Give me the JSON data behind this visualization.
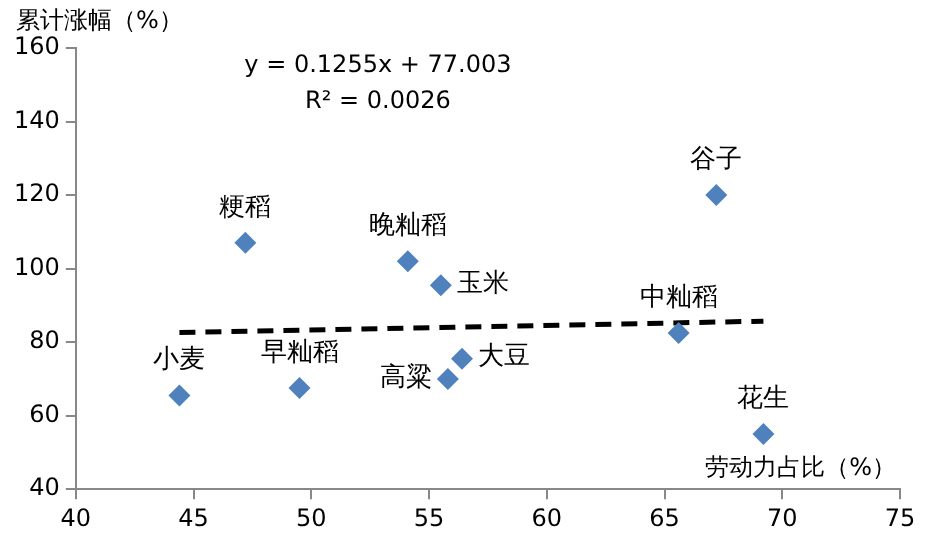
{
  "chart_data": {
    "type": "scatter",
    "xlabel": "劳动力占比（%）",
    "ylabel": "累计涨幅（%）",
    "x": [
      44.4,
      47.2,
      49.5,
      54.1,
      55.5,
      55.8,
      56.4,
      65.6,
      67.2,
      69.2
    ],
    "series": [
      {
        "type": "scatter",
        "color": "#4f81bd",
        "marker": "diamond",
        "values": [
          65.5,
          107,
          67.5,
          102,
          95.5,
          70,
          75.5,
          82.5,
          120,
          55
        ]
      },
      {
        "type": "line",
        "x": [
          44.4,
          69.2
        ],
        "values": [
          82.6,
          85.7
        ],
        "color": "#000000",
        "line_style": "dashed",
        "marker": "none"
      }
    ],
    "annotations": [
      "y = 0.1255x + 77.003",
      "R² = 0.0026",
      {
        "text": "小麦",
        "x": 44.4,
        "y": 65.5
      },
      {
        "text": "粳稻",
        "x": 47.2,
        "y": 107
      },
      {
        "text": "早籼稻",
        "x": 49.5,
        "y": 67.5
      },
      {
        "text": "晚籼稻",
        "x": 54.1,
        "y": 102
      },
      {
        "text": "玉米",
        "x": 55.5,
        "y": 95.5
      },
      {
        "text": "高粱",
        "x": 55.8,
        "y": 70
      },
      {
        "text": "大豆",
        "x": 56.4,
        "y": 75.5
      },
      {
        "text": "中籼稻",
        "x": 65.6,
        "y": 82.5
      },
      {
        "text": "谷子",
        "x": 67.2,
        "y": 120
      },
      {
        "text": "花生",
        "x": 69.2,
        "y": 55
      }
    ],
    "xlim": [
      40,
      75
    ],
    "xticks": [
      40,
      45,
      50,
      55,
      60,
      65,
      70,
      75
    ],
    "ylim": [
      40,
      160
    ],
    "yticks": [
      40,
      60,
      80,
      100,
      120,
      140,
      160
    ],
    "grid": false,
    "legend": false
  }
}
